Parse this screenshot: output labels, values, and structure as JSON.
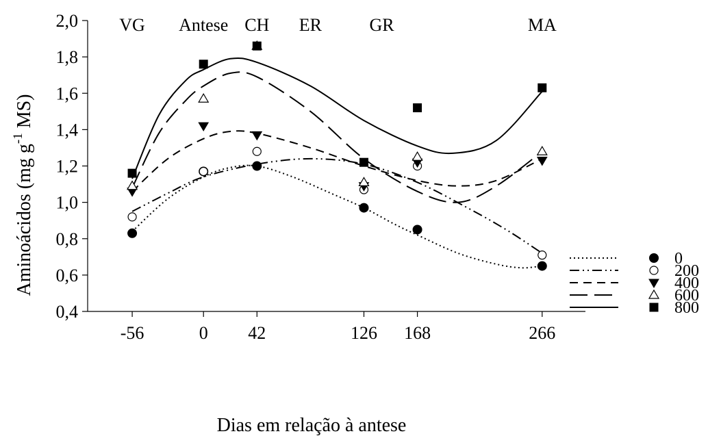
{
  "chart_data": {
    "type": "scatter",
    "xlabel": "Dias em relação à antese",
    "ylabel_main": "Aminoácidos (mg g",
    "ylabel_sup": "-1",
    "ylabel_end": " MS)",
    "ylim": [
      0.4,
      2.0
    ],
    "xlim": [
      -91,
      300
    ],
    "yticks": [
      "0,4",
      "0,6",
      "0,8",
      "1,0",
      "1,2",
      "1,4",
      "1,6",
      "1,8",
      "2,0"
    ],
    "yticks_values": [
      0.4,
      0.6,
      0.8,
      1.0,
      1.2,
      1.4,
      1.6,
      1.8,
      2.0
    ],
    "xticks": [
      "-56",
      "0",
      "42",
      "126",
      "168",
      "266"
    ],
    "xticks_values": [
      -56,
      0,
      42,
      126,
      168,
      266
    ],
    "stages": [
      {
        "label": "VG",
        "x": -56
      },
      {
        "label": "Antese",
        "x": 0
      },
      {
        "label": "CH",
        "x": 42
      },
      {
        "label": "ER",
        "x": 84
      },
      {
        "label": "GR",
        "x": 140
      },
      {
        "label": "MA",
        "x": 266
      }
    ],
    "x": [
      -56,
      0,
      42,
      126,
      168,
      266
    ],
    "series": [
      {
        "name": "0",
        "marker": "filled-circle",
        "line": "dotted",
        "values": [
          0.83,
          1.17,
          1.2,
          0.97,
          0.85,
          0.65
        ],
        "fit": [
          [
            -56,
            0.84
          ],
          [
            -28,
            1.02
          ],
          [
            0,
            1.14
          ],
          [
            20,
            1.19
          ],
          [
            42,
            1.2
          ],
          [
            70,
            1.14
          ],
          [
            100,
            1.05
          ],
          [
            126,
            0.97
          ],
          [
            150,
            0.88
          ],
          [
            168,
            0.82
          ],
          [
            200,
            0.72
          ],
          [
            230,
            0.66
          ],
          [
            250,
            0.64
          ],
          [
            266,
            0.65
          ]
        ]
      },
      {
        "name": "200",
        "marker": "open-circle",
        "line": "dash-dot-dot",
        "values": [
          0.92,
          1.17,
          1.28,
          1.07,
          1.2,
          0.71
        ],
        "fit": [
          [
            -56,
            0.95
          ],
          [
            -28,
            1.05
          ],
          [
            0,
            1.14
          ],
          [
            42,
            1.21
          ],
          [
            84,
            1.24
          ],
          [
            126,
            1.21
          ],
          [
            168,
            1.11
          ],
          [
            210,
            0.96
          ],
          [
            240,
            0.84
          ],
          [
            266,
            0.72
          ]
        ]
      },
      {
        "name": "400",
        "marker": "filled-triangle-down",
        "line": "dashed",
        "values": [
          1.06,
          1.42,
          1.37,
          1.09,
          1.22,
          1.23
        ],
        "fit": [
          [
            -56,
            1.06
          ],
          [
            -28,
            1.24
          ],
          [
            0,
            1.35
          ],
          [
            21,
            1.39
          ],
          [
            42,
            1.38
          ],
          [
            84,
            1.3
          ],
          [
            126,
            1.2
          ],
          [
            168,
            1.12
          ],
          [
            200,
            1.09
          ],
          [
            230,
            1.12
          ],
          [
            266,
            1.24
          ]
        ]
      },
      {
        "name": "600",
        "marker": "open-triangle-up",
        "line": "long-dash",
        "values": [
          1.09,
          1.57,
          1.86,
          1.11,
          1.25,
          1.28
        ],
        "fit": [
          [
            -56,
            1.08
          ],
          [
            -35,
            1.38
          ],
          [
            -14,
            1.56
          ],
          [
            0,
            1.64
          ],
          [
            21,
            1.71
          ],
          [
            42,
            1.69
          ],
          [
            84,
            1.5
          ],
          [
            126,
            1.24
          ],
          [
            168,
            1.06
          ],
          [
            200,
            1.0
          ],
          [
            230,
            1.09
          ],
          [
            266,
            1.28
          ]
        ]
      },
      {
        "name": "800",
        "marker": "filled-square",
        "line": "solid",
        "values": [
          1.16,
          1.76,
          1.86,
          1.22,
          1.52,
          1.63
        ],
        "fit": [
          [
            -56,
            1.13
          ],
          [
            -35,
            1.48
          ],
          [
            -14,
            1.67
          ],
          [
            0,
            1.73
          ],
          [
            21,
            1.79
          ],
          [
            42,
            1.77
          ],
          [
            84,
            1.64
          ],
          [
            126,
            1.45
          ],
          [
            168,
            1.31
          ],
          [
            196,
            1.27
          ],
          [
            230,
            1.34
          ],
          [
            266,
            1.61
          ]
        ]
      }
    ],
    "grid": false,
    "legend": "right"
  }
}
